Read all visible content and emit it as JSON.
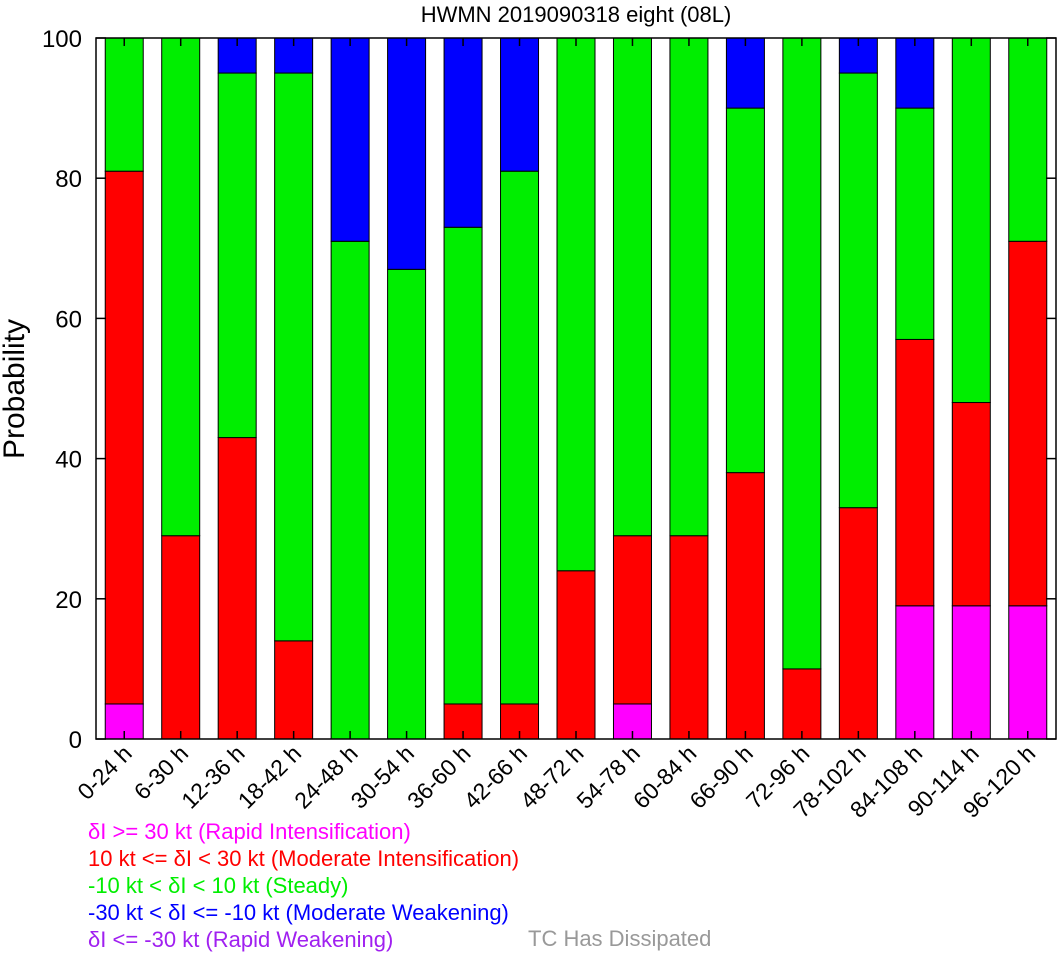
{
  "chart_data": {
    "type": "bar",
    "stacked": true,
    "title": "HWMN 2019090318 eight (08L)",
    "xlabel": "",
    "ylabel": "Probability",
    "ylim": [
      0,
      100
    ],
    "yticks": [
      0,
      20,
      40,
      60,
      80,
      100
    ],
    "grid": false,
    "categories": [
      "0-24 h",
      "6-30 h",
      "12-36 h",
      "18-42 h",
      "24-48 h",
      "30-54 h",
      "36-60 h",
      "42-66 h",
      "48-72 h",
      "54-78 h",
      "60-84 h",
      "66-90 h",
      "72-96 h",
      "78-102 h",
      "84-108 h",
      "90-114 h",
      "96-120 h"
    ],
    "series": [
      {
        "name": "δI >= 30 kt (Rapid Intensification)",
        "color": "#ff00ff",
        "values": [
          5,
          0,
          0,
          0,
          0,
          0,
          0,
          0,
          0,
          5,
          0,
          0,
          0,
          0,
          19,
          19,
          19
        ]
      },
      {
        "name": "10 kt <= δI < 30 kt (Moderate Intensification)",
        "color": "#ff0000",
        "values": [
          76,
          29,
          43,
          14,
          0,
          0,
          5,
          5,
          24,
          24,
          29,
          38,
          10,
          33,
          38,
          29,
          52
        ]
      },
      {
        "name": "-10 kt < δI < 10 kt (Steady)",
        "color": "#00ee00",
        "values": [
          19,
          71,
          52,
          81,
          71,
          67,
          68,
          76,
          76,
          71,
          71,
          52,
          90,
          62,
          33,
          52,
          29
        ]
      },
      {
        "name": "-30 kt < δI <= -10 kt (Moderate Weakening)",
        "color": "#0000ff",
        "values": [
          0,
          0,
          5,
          5,
          29,
          33,
          27,
          19,
          0,
          0,
          0,
          10,
          0,
          5,
          10,
          0,
          0
        ]
      },
      {
        "name": "δI <= -30 kt (Rapid Weakening)",
        "color": "#a020f0",
        "values": [
          0,
          0,
          0,
          0,
          0,
          0,
          0,
          0,
          0,
          0,
          0,
          0,
          0,
          0,
          0,
          0,
          0
        ]
      }
    ],
    "legend_position": "bottom-left"
  },
  "legend": [
    {
      "text": "δI >= 30 kt (Rapid Intensification)",
      "color": "#ff00ff"
    },
    {
      "text": "10 kt <= δI < 30 kt (Moderate Intensification)",
      "color": "#ff0000"
    },
    {
      "text": "-10 kt < δI < 10 kt (Steady)",
      "color": "#00ee00"
    },
    {
      "text": "-30 kt < δI <= -10 kt (Moderate Weakening)",
      "color": "#0000ff"
    },
    {
      "text": "δI <= -30 kt (Rapid Weakening)",
      "color": "#a020f0"
    }
  ],
  "dissipated": {
    "text": "TC Has Dissipated",
    "color": "#999999"
  }
}
